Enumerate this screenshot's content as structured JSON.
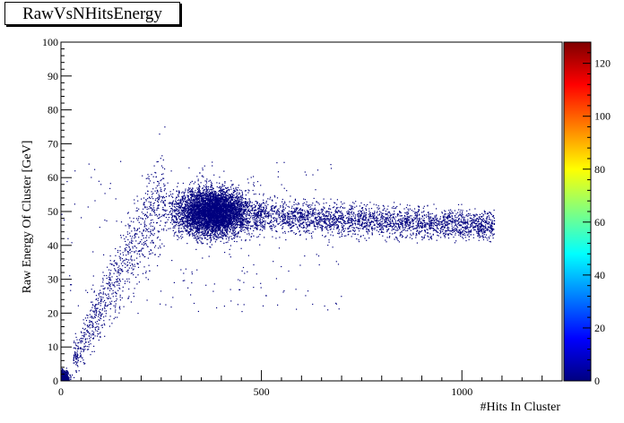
{
  "chart_data": {
    "type": "heatmap",
    "title": "RawVsNHitsEnergy",
    "xlabel": "#Hits In Cluster",
    "ylabel": "Raw Energy Of Cluster [GeV]",
    "xlim": [
      0,
      1250
    ],
    "ylim": [
      0,
      100
    ],
    "x_ticks": [
      {
        "value": 0,
        "label": "0"
      },
      {
        "value": 500,
        "label": "500"
      },
      {
        "value": 1000,
        "label": "1000"
      }
    ],
    "y_ticks": [
      {
        "value": 0,
        "label": "0"
      },
      {
        "value": 10,
        "label": "10"
      },
      {
        "value": 20,
        "label": "20"
      },
      {
        "value": 30,
        "label": "30"
      },
      {
        "value": 40,
        "label": "40"
      },
      {
        "value": 50,
        "label": "50"
      },
      {
        "value": 60,
        "label": "60"
      },
      {
        "value": 70,
        "label": "70"
      },
      {
        "value": 80,
        "label": "80"
      },
      {
        "value": 90,
        "label": "90"
      },
      {
        "value": 100,
        "label": "100"
      }
    ],
    "colorbar": {
      "min": 0,
      "max": 128,
      "ticks": [
        {
          "value": 0,
          "label": "0"
        },
        {
          "value": 20,
          "label": "20"
        },
        {
          "value": 40,
          "label": "40"
        },
        {
          "value": 60,
          "label": "60"
        },
        {
          "value": 80,
          "label": "80"
        },
        {
          "value": 100,
          "label": "100"
        },
        {
          "value": 120,
          "label": "120"
        }
      ],
      "palette": [
        "#00007f",
        "#0000ff",
        "#0080ff",
        "#00ffff",
        "#80ff80",
        "#ffff00",
        "#ff8000",
        "#ff0000",
        "#7f0000"
      ]
    },
    "point_color": "#00007f",
    "density_regions": [
      {
        "name": "low-hits-core",
        "x_range": [
          0,
          40
        ],
        "y_range": [
          0,
          5
        ],
        "relative_density": "very high"
      },
      {
        "name": "rising-band",
        "x_range": [
          40,
          260
        ],
        "y_range": [
          3,
          60
        ],
        "relative_density": "low"
      },
      {
        "name": "main-cluster",
        "x_center": 380,
        "y_center": 50,
        "x_range": [
          270,
          520
        ],
        "y_range": [
          38,
          62
        ],
        "relative_density": "high"
      },
      {
        "name": "tail-band",
        "x_range": [
          520,
          1150
        ],
        "y_range": [
          42,
          56
        ],
        "relative_density": "medium"
      }
    ]
  }
}
